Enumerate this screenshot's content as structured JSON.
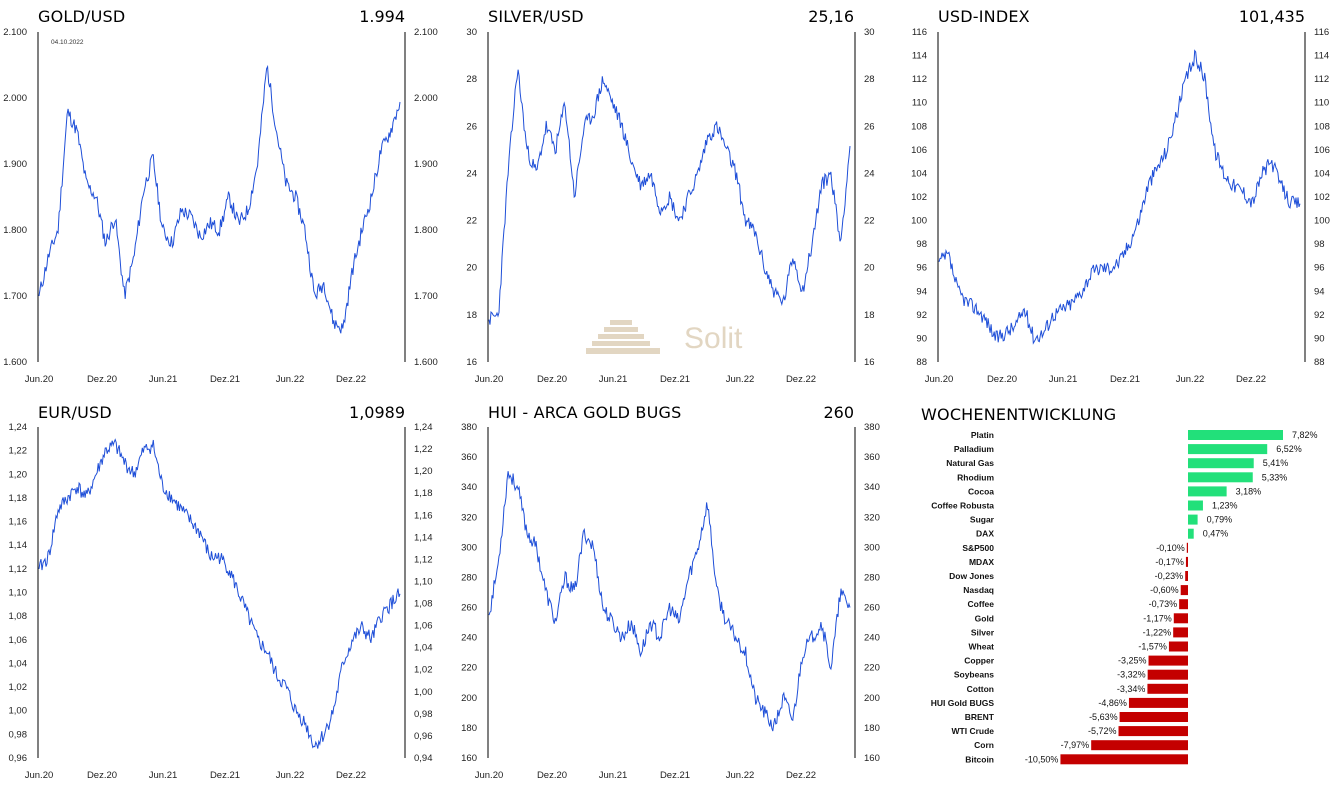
{
  "chart_data": [
    {
      "type": "line",
      "title": "GOLD/USD",
      "last_value": "1.994",
      "x_ticks": [
        "Jun.20",
        "Dez.20",
        "Jun.21",
        "Dez.21",
        "Jun.22",
        "Dez.22"
      ],
      "y_ticks": [
        "1.600",
        "1.700",
        "1.800",
        "1.900",
        "2.000",
        "2.100"
      ],
      "ylim": [
        1600,
        2100
      ],
      "annotation": "04.10.2022",
      "line_color": "#1f4fd8",
      "series": [
        {
          "x": [
            0,
            1,
            2,
            3,
            4,
            5,
            6,
            7,
            8,
            9,
            10,
            11,
            12,
            13,
            14,
            15,
            16,
            17,
            18,
            19,
            20,
            21,
            22,
            23,
            24,
            25,
            26,
            27,
            28,
            29,
            30,
            31,
            32,
            33,
            34,
            35,
            36,
            37,
            38
          ],
          "values": [
            1700,
            1760,
            1800,
            1980,
            1950,
            1870,
            1850,
            1780,
            1820,
            1700,
            1760,
            1860,
            1910,
            1800,
            1780,
            1830,
            1820,
            1790,
            1810,
            1800,
            1850,
            1810,
            1830,
            1900,
            2050,
            1950,
            1870,
            1850,
            1800,
            1700,
            1720,
            1660,
            1650,
            1740,
            1800,
            1850,
            1920,
            1950,
            1994
          ]
        }
      ]
    },
    {
      "type": "line",
      "title": "SILVER/USD",
      "last_value": "25,16",
      "x_ticks": [
        "Jun.20",
        "Dez.20",
        "Jun.21",
        "Dez.21",
        "Jun.22",
        "Dez.22"
      ],
      "y_ticks": [
        "16",
        "18",
        "20",
        "22",
        "24",
        "26",
        "28",
        "30"
      ],
      "ylim": [
        16,
        30
      ],
      "line_color": "#1f4fd8",
      "series": [
        {
          "x": [
            0,
            1,
            2,
            3,
            4,
            5,
            6,
            7,
            8,
            9,
            10,
            11,
            12,
            13,
            14,
            15,
            16,
            17,
            18,
            19,
            20,
            21,
            22,
            23,
            24,
            25,
            26,
            27,
            28,
            29,
            30,
            31,
            32,
            33,
            34,
            35,
            36,
            37,
            38
          ],
          "values": [
            17.8,
            18,
            24,
            28.5,
            25,
            24,
            26,
            25,
            27,
            23,
            26,
            26.5,
            28,
            27,
            26,
            24.5,
            23.5,
            24,
            22.5,
            23,
            22,
            23,
            24,
            25.5,
            26,
            25,
            24,
            22,
            21.5,
            20,
            19,
            18.5,
            20.5,
            19,
            21,
            23.5,
            24,
            21,
            25.16
          ]
        }
      ]
    },
    {
      "type": "line",
      "title": "USD-INDEX",
      "last_value": "101,435",
      "x_ticks": [
        "Jun.20",
        "Dez.20",
        "Jun.21",
        "Dez.21",
        "Jun.22",
        "Dez.22"
      ],
      "y_ticks": [
        "88",
        "90",
        "92",
        "94",
        "96",
        "98",
        "100",
        "102",
        "104",
        "106",
        "108",
        "110",
        "112",
        "114",
        "116"
      ],
      "ylim": [
        88,
        116
      ],
      "line_color": "#1f4fd8",
      "series": [
        {
          "x": [
            0,
            1,
            2,
            3,
            4,
            5,
            6,
            7,
            8,
            9,
            10,
            11,
            12,
            13,
            14,
            15,
            16,
            17,
            18,
            19,
            20,
            21,
            22,
            23,
            24,
            25,
            26,
            27,
            28,
            29,
            30,
            31,
            32,
            33,
            34,
            35,
            36,
            37,
            38
          ],
          "values": [
            96.5,
            97,
            94,
            93,
            92.5,
            91.5,
            90,
            90.5,
            91,
            92.5,
            90,
            90.5,
            92,
            92.5,
            93,
            94,
            95.5,
            96,
            96,
            96.5,
            98,
            100,
            103,
            104.5,
            106,
            109,
            112,
            114,
            112,
            106,
            104,
            103,
            102.5,
            101.5,
            104,
            105,
            103,
            101.5,
            101.435
          ]
        }
      ]
    },
    {
      "type": "line",
      "title": "EUR/USD",
      "last_value": "1,0989",
      "x_ticks": [
        "Jun.20",
        "Dez.20",
        "Jun.21",
        "Dez.21",
        "Jun.22",
        "Dez.22"
      ],
      "y_ticks_left": [
        "0,96",
        "0,98",
        "1,00",
        "1,02",
        "1,04",
        "1,06",
        "1,08",
        "1,10",
        "1,12",
        "1,14",
        "1,16",
        "1,18",
        "1,20",
        "1,22",
        "1,24"
      ],
      "ylim_left": [
        0.96,
        1.24
      ],
      "y_ticks_right": [
        "0,94",
        "0,96",
        "0,98",
        "1,00",
        "1,02",
        "1,04",
        "1,06",
        "1,08",
        "1,10",
        "1,12",
        "1,14",
        "1,16",
        "1,18",
        "1,20",
        "1,22",
        "1,24"
      ],
      "ylim_right": [
        0.94,
        1.24
      ],
      "line_color": "#1f4fd8",
      "series": [
        {
          "x": [
            0,
            1,
            2,
            3,
            4,
            5,
            6,
            7,
            8,
            9,
            10,
            11,
            12,
            13,
            14,
            15,
            16,
            17,
            18,
            19,
            20,
            21,
            22,
            23,
            24,
            25,
            26,
            27,
            28,
            29,
            30,
            31,
            32,
            33,
            34,
            35,
            36,
            37,
            38
          ],
          "values": [
            1.12,
            1.13,
            1.17,
            1.18,
            1.19,
            1.18,
            1.2,
            1.22,
            1.225,
            1.21,
            1.2,
            1.22,
            1.225,
            1.19,
            1.18,
            1.17,
            1.16,
            1.15,
            1.13,
            1.13,
            1.12,
            1.1,
            1.08,
            1.06,
            1.05,
            1.03,
            1.02,
            1.0,
            0.99,
            0.97,
            0.98,
            1.0,
            1.04,
            1.06,
            1.07,
            1.06,
            1.08,
            1.09,
            1.0989
          ]
        }
      ]
    },
    {
      "type": "line",
      "title": "HUI - ARCA GOLD BUGS",
      "last_value": "260",
      "x_ticks": [
        "Jun.20",
        "Dez.20",
        "Jun.21",
        "Dez.21",
        "Jun.22",
        "Dez.22"
      ],
      "y_ticks": [
        "160",
        "180",
        "200",
        "220",
        "240",
        "260",
        "280",
        "300",
        "320",
        "340",
        "360",
        "380"
      ],
      "ylim": [
        160,
        380
      ],
      "line_color": "#1f4fd8",
      "series": [
        {
          "x": [
            0,
            1,
            2,
            3,
            4,
            5,
            6,
            7,
            8,
            9,
            10,
            11,
            12,
            13,
            14,
            15,
            16,
            17,
            18,
            19,
            20,
            21,
            22,
            23,
            24,
            25,
            26,
            27,
            28,
            29,
            30,
            31,
            32,
            33,
            34,
            35,
            36,
            37,
            38
          ],
          "values": [
            255,
            290,
            350,
            340,
            310,
            300,
            270,
            250,
            280,
            270,
            310,
            300,
            260,
            250,
            240,
            250,
            230,
            250,
            240,
            260,
            250,
            280,
            300,
            330,
            270,
            250,
            240,
            230,
            200,
            190,
            180,
            200,
            185,
            230,
            240,
            250,
            220,
            270,
            260
          ]
        }
      ]
    },
    {
      "type": "bar",
      "title": "WOCHENENTWICKLUNG",
      "orientation": "horizontal",
      "positive_color": "#22e07a",
      "negative_color": "#c40000",
      "categories": [
        "Platin",
        "Palladium",
        "Natural Gas",
        "Rhodium",
        "Cocoa",
        "Coffee Robusta",
        "Sugar",
        "DAX",
        "S&P500",
        "MDAX",
        "Dow Jones",
        "Nasdaq",
        "Coffee",
        "Gold",
        "Silver",
        "Wheat",
        "Copper",
        "Soybeans",
        "Cotton",
        "HUI Gold BUGS",
        "BRENT",
        "WTI Crude",
        "Corn",
        "Bitcoin"
      ],
      "values": [
        7.82,
        6.52,
        5.41,
        5.33,
        3.18,
        1.23,
        0.79,
        0.47,
        -0.1,
        -0.17,
        -0.23,
        -0.6,
        -0.73,
        -1.17,
        -1.22,
        -1.57,
        -3.25,
        -3.32,
        -3.34,
        -4.86,
        -5.63,
        -5.72,
        -7.97,
        -10.5
      ],
      "labels": [
        "7,82%",
        "6,52%",
        "5,41%",
        "5,33%",
        "3,18%",
        "1,23%",
        "0,79%",
        "0,47%",
        "-0,10%",
        "-0,17%",
        "-0,23%",
        "-0,60%",
        "-0,73%",
        "-1,17%",
        "-1,22%",
        "-1,57%",
        "-3,25%",
        "-3,32%",
        "-3,34%",
        "-4,86%",
        "-5,63%",
        "-5,72%",
        "-7,97%",
        "-10,50%"
      ]
    }
  ],
  "watermark": {
    "brand": "Solit"
  }
}
